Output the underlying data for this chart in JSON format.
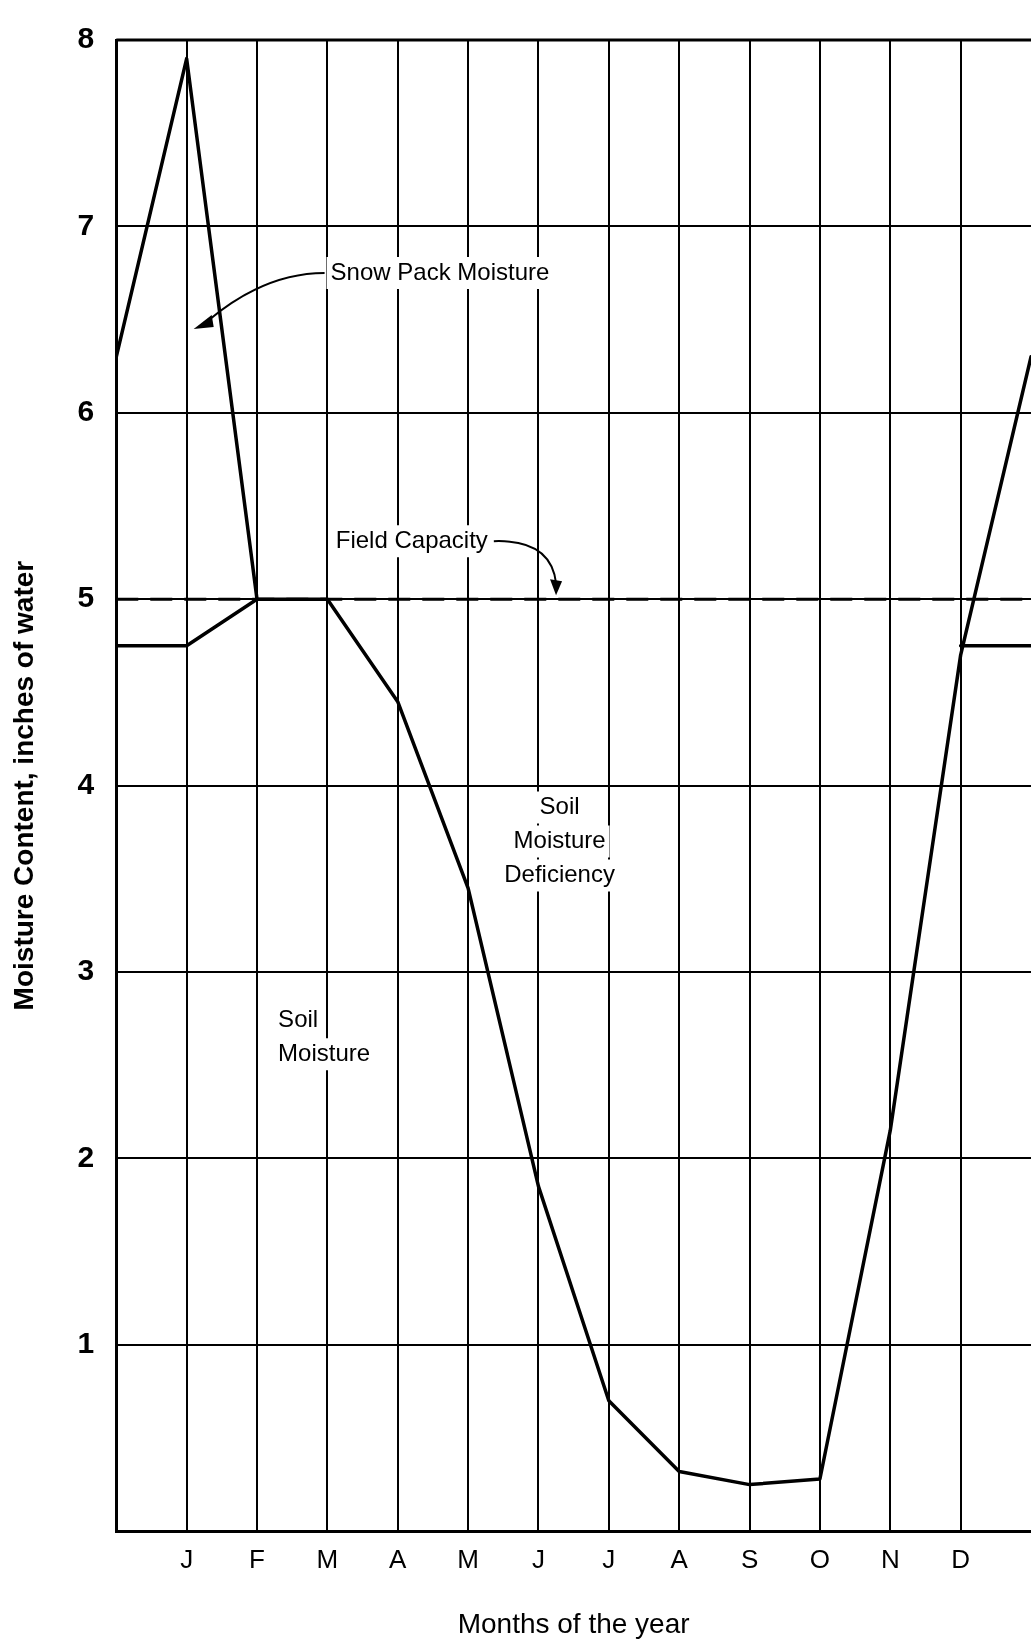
{
  "chart_data": {
    "type": "line",
    "xlabel": "Months of the year",
    "ylabel": "Moisture Content, inches of water",
    "categories": [
      null,
      "J",
      "F",
      "M",
      "A",
      "M",
      "J",
      "J",
      "A",
      "S",
      "O",
      "N",
      "D",
      null
    ],
    "ylim": [
      0,
      8
    ],
    "yticks": [
      {
        "value": 0,
        "label": null
      },
      1,
      2,
      3,
      4,
      5,
      6,
      7,
      8
    ],
    "series": [
      {
        "color": "#000000",
        "values": [
          6.3,
          7.9,
          5,
          5,
          4.45,
          3.45,
          1.85,
          0.7,
          0.32,
          0.25,
          0.28,
          2.15,
          4.7,
          6.3
        ]
      },
      {
        "color": "#000000",
        "values": [
          4.75,
          4.75,
          5,
          null,
          null,
          null,
          null,
          null,
          null,
          null,
          null,
          null,
          4.75,
          4.75
        ]
      }
    ],
    "ref_lines": [
      {
        "axis": "y",
        "value": 5,
        "label": "Field Capacity",
        "line_style": "dashed",
        "color": "#000000"
      }
    ],
    "annotations": [
      "Snow Pack Moisture",
      "Soil Moisture",
      "Soil Moisture Deficiency"
    ],
    "grid": true,
    "legend": false,
    "marker": "none",
    "line_style": "solid"
  }
}
